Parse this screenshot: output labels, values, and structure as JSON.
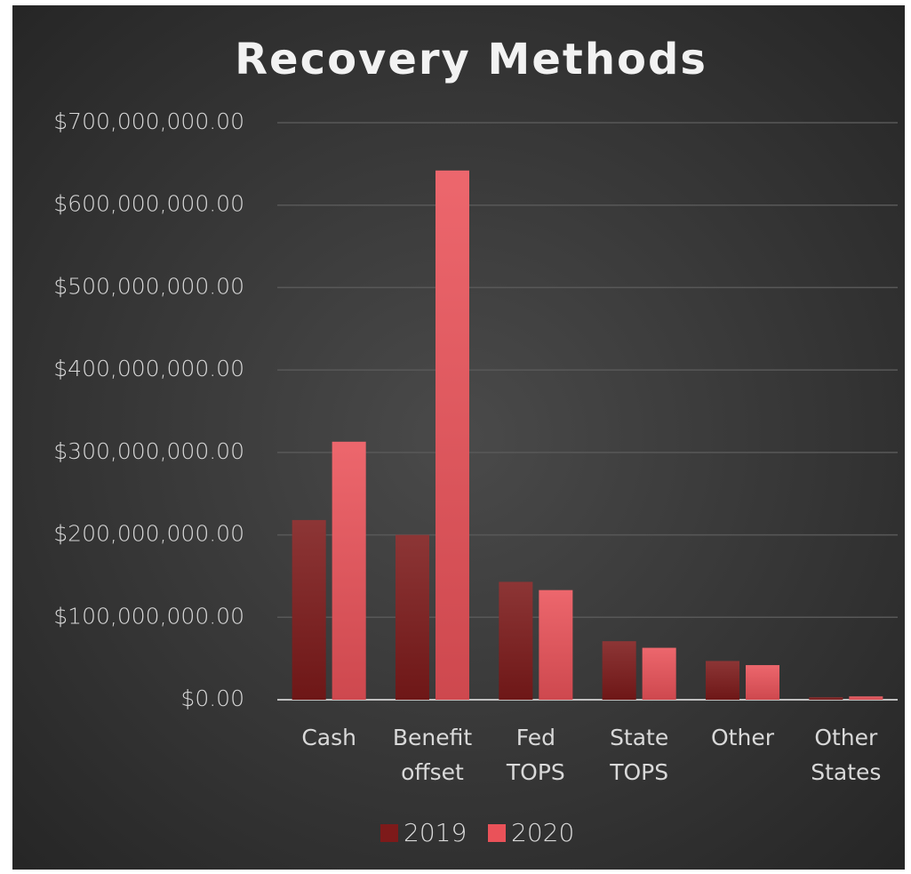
{
  "chart_data": {
    "type": "bar",
    "title": "Recovery Methods",
    "categories": [
      "Cash",
      "Benefit offset",
      "Fed TOPS",
      "State TOPS",
      "Other",
      "Other States"
    ],
    "series": [
      {
        "name": "2019",
        "color": "#7d1a1a",
        "values": [
          218000000,
          200000000,
          143000000,
          71000000,
          47000000,
          3000000
        ]
      },
      {
        "name": "2020",
        "color": "#ea5259",
        "values": [
          313000000,
          642000000,
          133000000,
          63000000,
          42000000,
          4000000
        ]
      }
    ],
    "ylim": [
      0,
      700000000
    ],
    "yticks": [
      {
        "value": 0,
        "label": "$0.00"
      },
      {
        "value": 100000000,
        "label": "$100,000,000.00"
      },
      {
        "value": 200000000,
        "label": "$200,000,000.00"
      },
      {
        "value": 300000000,
        "label": "$300,000,000.00"
      },
      {
        "value": 400000000,
        "label": "$400,000,000.00"
      },
      {
        "value": 500000000,
        "label": "$500,000,000.00"
      },
      {
        "value": 600000000,
        "label": "$600,000,000.00"
      },
      {
        "value": 700000000,
        "label": "$700,000,000.00"
      }
    ],
    "grid": true,
    "legend": "bottom"
  }
}
